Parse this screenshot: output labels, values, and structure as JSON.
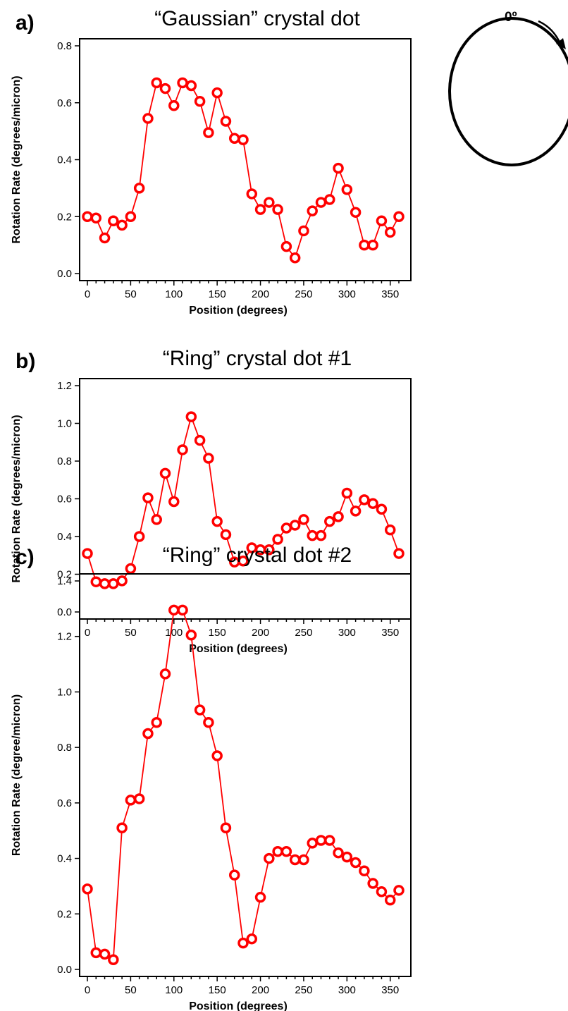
{
  "inset": {
    "zero_label": "0º"
  },
  "chart_data": [
    {
      "panel": "a)",
      "type": "line",
      "title": "“Gaussian” crystal dot",
      "xlabel": "Position (degrees)",
      "ylabel": "Rotation Rate (degrees/micron)",
      "xlim": [
        0,
        360
      ],
      "ylim": [
        0,
        0.8
      ],
      "xticks": [
        "0",
        "50",
        "100",
        "150",
        "200",
        "250",
        "300",
        "350"
      ],
      "xtick_values": [
        0,
        50,
        100,
        150,
        200,
        250,
        300,
        350
      ],
      "yticks": [
        "0.0",
        "0.2",
        "0.4",
        "0.6",
        "0.8"
      ],
      "ytick_values": [
        0,
        0.2,
        0.4,
        0.6,
        0.8
      ],
      "color": "#ff0000",
      "grid": false,
      "x": [
        0,
        10,
        20,
        30,
        40,
        50,
        60,
        70,
        80,
        90,
        100,
        110,
        120,
        130,
        140,
        150,
        160,
        170,
        180,
        190,
        200,
        210,
        220,
        230,
        240,
        250,
        260,
        270,
        280,
        290,
        300,
        310,
        320,
        330,
        340,
        350,
        360
      ],
      "y": [
        0.2,
        0.195,
        0.125,
        0.185,
        0.17,
        0.2,
        0.3,
        0.545,
        0.67,
        0.65,
        0.59,
        0.67,
        0.66,
        0.605,
        0.495,
        0.635,
        0.535,
        0.475,
        0.47,
        0.28,
        0.225,
        0.25,
        0.225,
        0.095,
        0.055,
        0.15,
        0.22,
        0.25,
        0.26,
        0.37,
        0.295,
        0.215,
        0.1,
        0.1,
        0.185,
        0.145,
        0.2
      ]
    },
    {
      "panel": "b)",
      "type": "line",
      "title": "“Ring” crystal dot #1",
      "xlabel": "Position (degrees)",
      "ylabel": "Rotation Rate (degrees/micron)",
      "xlim": [
        0,
        360
      ],
      "ylim": [
        0,
        1.2
      ],
      "xticks": [
        "0",
        "50",
        "100",
        "150",
        "200",
        "250",
        "300",
        "350"
      ],
      "xtick_values": [
        0,
        50,
        100,
        150,
        200,
        250,
        300,
        350
      ],
      "yticks": [
        "0.0",
        "0.2",
        "0.4",
        "0.6",
        "0.8",
        "1.0",
        "1.2"
      ],
      "ytick_values": [
        0,
        0.2,
        0.4,
        0.6,
        0.8,
        1.0,
        1.2
      ],
      "color": "#ff0000",
      "grid": false,
      "x": [
        0,
        10,
        20,
        30,
        40,
        50,
        60,
        70,
        80,
        90,
        100,
        110,
        120,
        130,
        140,
        150,
        160,
        170,
        180,
        190,
        200,
        210,
        220,
        230,
        240,
        250,
        260,
        270,
        280,
        290,
        300,
        310,
        320,
        330,
        340,
        350,
        360
      ],
      "y": [
        0.31,
        0.16,
        0.15,
        0.15,
        0.165,
        0.23,
        0.4,
        0.605,
        0.49,
        0.735,
        0.585,
        0.86,
        1.035,
        0.91,
        0.815,
        0.48,
        0.41,
        0.265,
        0.27,
        0.34,
        0.33,
        0.33,
        0.385,
        0.445,
        0.46,
        0.49,
        0.405,
        0.405,
        0.48,
        0.505,
        0.63,
        0.535,
        0.595,
        0.575,
        0.545,
        0.435,
        0.31
      ]
    },
    {
      "panel": "c)",
      "type": "line",
      "title": "“Ring” crystal dot #2",
      "xlabel": "Position (degrees)",
      "ylabel": "Rotation Rate (degree/micron)",
      "xlim": [
        0,
        360
      ],
      "ylim": [
        0,
        1.4
      ],
      "xticks": [
        "0",
        "50",
        "100",
        "150",
        "200",
        "250",
        "300",
        "350"
      ],
      "xtick_values": [
        0,
        50,
        100,
        150,
        200,
        250,
        300,
        350
      ],
      "yticks": [
        "0.0",
        "0.2",
        "0.4",
        "0.6",
        "0.8",
        "1.0",
        "1.2",
        "1.4"
      ],
      "ytick_values": [
        0,
        0.2,
        0.4,
        0.6,
        0.8,
        1.0,
        1.2,
        1.4
      ],
      "color": "#ff0000",
      "grid": false,
      "x": [
        0,
        10,
        20,
        30,
        40,
        50,
        60,
        70,
        80,
        90,
        100,
        110,
        120,
        130,
        140,
        150,
        160,
        170,
        180,
        190,
        200,
        210,
        220,
        230,
        240,
        250,
        260,
        270,
        280,
        290,
        300,
        310,
        320,
        330,
        340,
        350,
        360
      ],
      "y": [
        0.29,
        0.06,
        0.055,
        0.035,
        0.51,
        0.61,
        0.615,
        0.85,
        0.89,
        1.065,
        1.295,
        1.295,
        1.205,
        0.935,
        0.89,
        0.77,
        0.51,
        0.34,
        0.095,
        0.11,
        0.26,
        0.4,
        0.425,
        0.425,
        0.395,
        0.395,
        0.455,
        0.465,
        0.465,
        0.42,
        0.405,
        0.385,
        0.355,
        0.31,
        0.28,
        0.25,
        0.285
      ]
    }
  ]
}
